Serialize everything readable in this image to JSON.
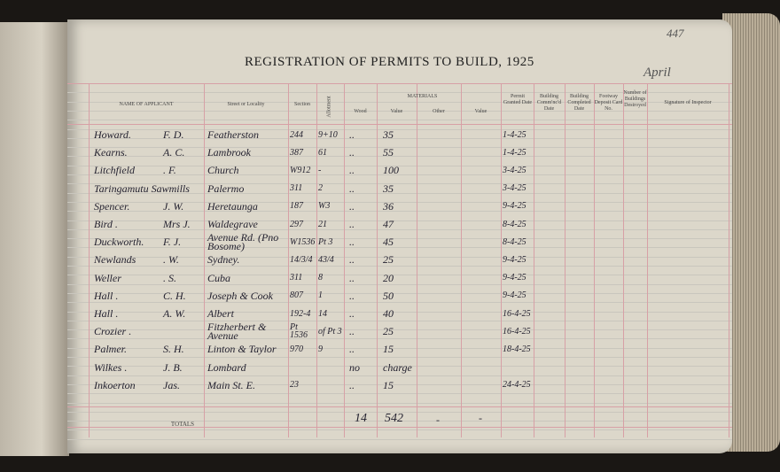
{
  "title": "REGISTRATION OF PERMITS TO BUILD, 1925",
  "page_number": "447",
  "month": "April",
  "headers": {
    "name": "NAME OF APPLICANT",
    "street": "Street or Locality",
    "section": "Section",
    "allotment": "Allotment",
    "materials": "MATERIALS",
    "wood": "Wood",
    "value1": "Value",
    "other": "Other",
    "value2": "Value",
    "permit": "Permit Granted Date",
    "commenced": "Building Comm'nc'd Date",
    "completed": "Building Completed Date",
    "footway": "Footway Deposit Card No.",
    "number": "Number of Buildings Destroyed",
    "signature": "Signature of Inspector"
  },
  "rows": [
    {
      "name": "Howard.",
      "init": "F. D.",
      "street": "Featherston",
      "section": "244",
      "allot": "9+10",
      "wood": "..",
      "value": "35",
      "date": "1-4-25"
    },
    {
      "name": "Kearns.",
      "init": "A. C.",
      "street": "Lambrook",
      "section": "387",
      "allot": "61",
      "wood": "..",
      "value": "55",
      "date": "1-4-25"
    },
    {
      "name": "Litchfield",
      "init": ". F.",
      "street": "Church",
      "section": "W912",
      "allot": "-",
      "wood": "..",
      "value": "100",
      "date": "3-4-25"
    },
    {
      "name": "Taringamutu Sawmills",
      "init": "",
      "street": "Palermo",
      "section": "311",
      "allot": "2",
      "wood": "..",
      "value": "35",
      "date": "3-4-25"
    },
    {
      "name": "Spencer.",
      "init": "J. W.",
      "street": "Heretaunga",
      "section": "187",
      "allot": "W3",
      "wood": "..",
      "value": "36",
      "date": "9-4-25"
    },
    {
      "name": "Bird .",
      "init": "Mrs J.",
      "street": "Waldegrave",
      "section": "297",
      "allot": "21",
      "wood": "..",
      "value": "47",
      "date": "8-4-25"
    },
    {
      "name": "Duckworth.",
      "init": "F. J.",
      "street": "Avenue Rd. (Pno Bosome)",
      "section": "W1536",
      "allot": "Pt 3",
      "wood": "..",
      "value": "45",
      "date": "8-4-25"
    },
    {
      "name": "Newlands",
      "init": ". W.",
      "street": "Sydney.",
      "section": "14/3/4",
      "allot": "43/4",
      "wood": "..",
      "value": "25",
      "date": "9-4-25"
    },
    {
      "name": "Weller",
      "init": ". S.",
      "street": "Cuba",
      "section": "311",
      "allot": "8",
      "wood": "..",
      "value": "20",
      "date": "9-4-25"
    },
    {
      "name": "Hall .",
      "init": "C. H.",
      "street": "Joseph & Cook",
      "section": "807",
      "allot": "1",
      "wood": "..",
      "value": "50",
      "date": "9-4-25"
    },
    {
      "name": "Hall .",
      "init": "A. W.",
      "street": "Albert",
      "section": "192-4",
      "allot": "14",
      "wood": "..",
      "value": "40",
      "date": "16-4-25"
    },
    {
      "name": "Crozier .",
      "init": "",
      "street": "Fitzherbert & Avenue",
      "section": "Pt 1536",
      "allot": "of Pt 3",
      "wood": "..",
      "value": "25",
      "date": "16-4-25"
    },
    {
      "name": "Palmer.",
      "init": "S. H.",
      "street": "Linton & Taylor",
      "section": "970",
      "allot": "9",
      "wood": "..",
      "value": "15",
      "date": "18-4-25"
    },
    {
      "name": "Wilkes .",
      "init": "J. B.",
      "street": "Lombard",
      "section": "",
      "allot": "",
      "wood": "no",
      "value": "charge",
      "date": ""
    },
    {
      "name": "Inkoerton",
      "init": "Jas.",
      "street": "Main St. E.",
      "section": "23",
      "allot": "",
      "wood": "..",
      "value": "15",
      "date": "24-4-25"
    }
  ],
  "totals": {
    "label": "TOTALS",
    "wood": "14",
    "value": "542",
    "other": "-",
    "value2": "-"
  }
}
